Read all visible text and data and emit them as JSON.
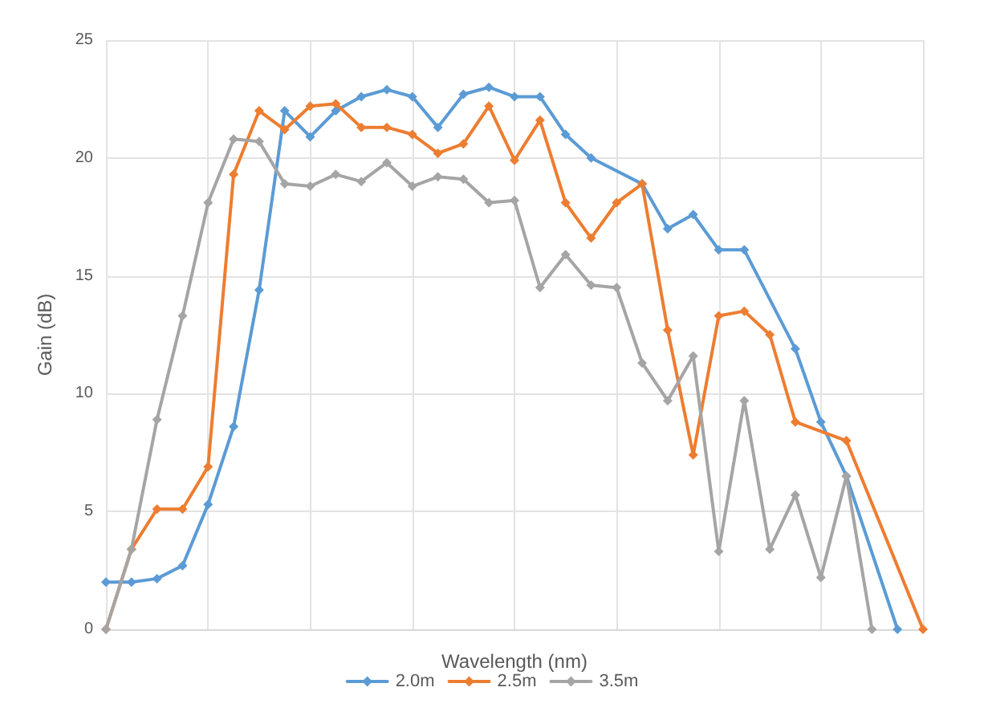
{
  "chart_data": {
    "type": "line",
    "xlabel": "Wavelength (nm)",
    "ylabel": "Gain (dB)",
    "categories": [
      null,
      null,
      null,
      null,
      null,
      null,
      null,
      null,
      null,
      null,
      null,
      null,
      null,
      null,
      null,
      null,
      null,
      null,
      null,
      null,
      null,
      null,
      null,
      null,
      null,
      null,
      null,
      null,
      null,
      null,
      null,
      null,
      null
    ],
    "ylim": [
      0,
      25
    ],
    "yticks": [
      0,
      5,
      10,
      15,
      20,
      25
    ],
    "grid": true,
    "legend": "bottom",
    "marker": "diamond",
    "line_style": "solid",
    "series": [
      {
        "name": "2.0m",
        "color": "#5b9bd5",
        "values": [
          2.0,
          2.0,
          2.15,
          2.7,
          5.3,
          8.6,
          14.4,
          22.0,
          20.9,
          22.0,
          22.6,
          22.9,
          22.6,
          21.3,
          22.7,
          23.0,
          22.6,
          22.6,
          21.0,
          20.0,
          null,
          18.9,
          17.0,
          17.6,
          16.1,
          16.1,
          null,
          11.9,
          8.8,
          6.5,
          null,
          0,
          null
        ]
      },
      {
        "name": "2.5m",
        "color": "#ed7d31",
        "values": [
          0,
          3.4,
          5.1,
          5.1,
          6.9,
          19.3,
          22.0,
          21.2,
          22.2,
          22.3,
          21.3,
          21.3,
          21.0,
          20.2,
          20.6,
          22.2,
          19.9,
          21.6,
          18.1,
          16.6,
          18.1,
          18.9,
          12.7,
          7.4,
          13.3,
          13.5,
          12.5,
          8.8,
          null,
          8.0,
          null,
          null,
          0
        ]
      },
      {
        "name": "3.5m",
        "color": "#a5a5a5",
        "values": [
          0,
          3.4,
          8.9,
          13.3,
          18.1,
          20.8,
          20.7,
          18.9,
          18.8,
          19.3,
          19.0,
          19.8,
          18.8,
          19.2,
          19.1,
          18.1,
          18.2,
          14.5,
          15.9,
          14.6,
          14.5,
          11.3,
          9.7,
          11.6,
          3.3,
          9.7,
          3.4,
          5.7,
          2.2,
          6.5,
          0,
          null,
          null
        ]
      }
    ]
  }
}
